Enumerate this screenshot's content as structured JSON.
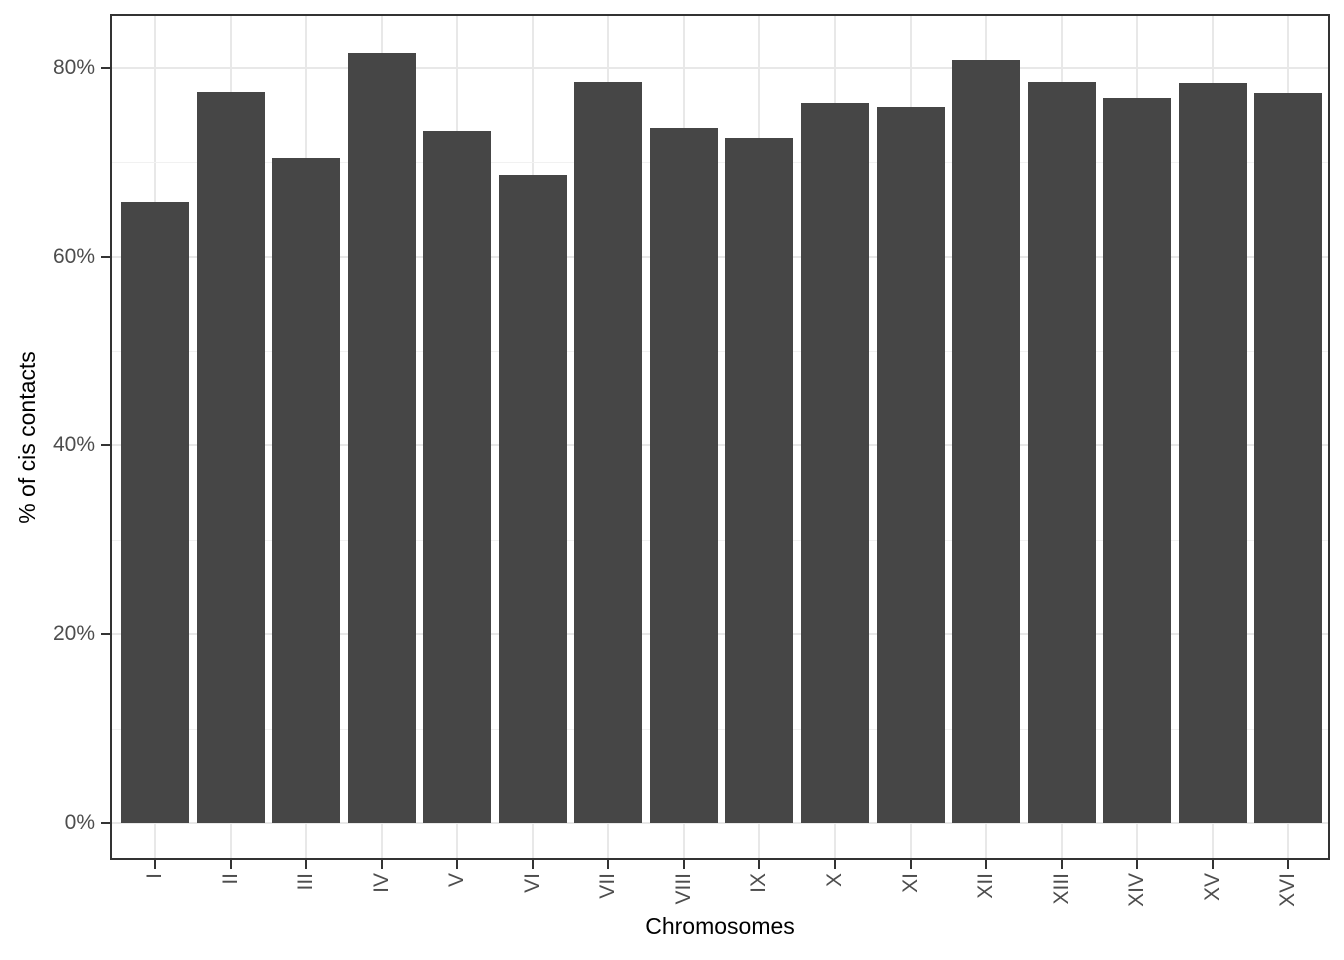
{
  "chart_data": {
    "type": "bar",
    "title": "",
    "xlabel": "Chromosomes",
    "ylabel": "% of cis contacts",
    "categories": [
      "I",
      "II",
      "III",
      "IV",
      "V",
      "VI",
      "VII",
      "VIII",
      "IX",
      "X",
      "XI",
      "XII",
      "XIII",
      "XIV",
      "XV",
      "XVI"
    ],
    "values": [
      65.8,
      77.4,
      70.4,
      81.6,
      73.3,
      68.6,
      78.5,
      73.6,
      72.6,
      76.3,
      75.8,
      80.8,
      78.5,
      76.8,
      78.4,
      77.3
    ],
    "value_unit": "%",
    "ylim": [
      0,
      85
    ],
    "y_ticks": [
      {
        "value": 0,
        "label": "0%"
      },
      {
        "value": 20,
        "label": "20%"
      },
      {
        "value": 40,
        "label": "40%"
      },
      {
        "value": 60,
        "label": "60%"
      },
      {
        "value": 80,
        "label": "80%"
      }
    ],
    "y_minor_ticks": [
      10,
      30,
      50,
      70
    ],
    "grid": "horizontal major+minor, vertical major at each category",
    "legend": "none",
    "bar_orientation": "vertical",
    "x_tick_label_rotation": 90,
    "colors": {
      "bar": "#464646",
      "grid_major": "#E8E8E8",
      "grid_minor": "#F1F1F1",
      "axis_text": "#4D4D4D",
      "panel_border": "#333333",
      "title_text": "#000000"
    }
  }
}
